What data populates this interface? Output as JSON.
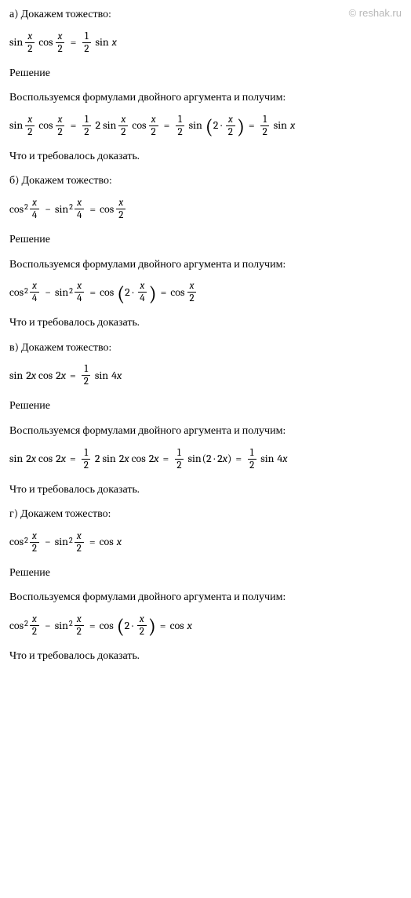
{
  "watermark": "© reshak.ru",
  "colors": {
    "text": "#000000",
    "bg": "#ffffff",
    "watermark": "#b8b8b8"
  },
  "typography": {
    "body_fontsize": 14,
    "math_fontsize": 14,
    "frac_fontsize": 13
  },
  "sections": {
    "a": {
      "title": "а) Докажем тожество:",
      "identity_lhs_fn1": "sin",
      "identity_lhs_fn2": "cos",
      "identity_rhs_fn": "sin",
      "var_x": "x",
      "num_1": "1",
      "num_2": "2",
      "solution_label": "Решение",
      "method": "Воспользуемся формулами двойного аргумента и получим:",
      "dot": "·",
      "qed": "Что и требовалось доказать."
    },
    "b": {
      "title": " б) Докажем тожество:",
      "fn_cos": "cos",
      "fn_sin": "sin",
      "sup2": "2",
      "var_x": "x",
      "num_4": "4",
      "num_2": "2",
      "dot": "·",
      "solution_label": "Решение",
      "method": "Воспользуемся формулами двойного аргумента и получим:",
      "qed": "Что и требовалось доказать."
    },
    "c": {
      "title": "в) Докажем тожество:",
      "fn_sin": "sin",
      "fn_cos": "cos",
      "num_2": "2",
      "num_1": "1",
      "num_4": "4",
      "var_x": "x",
      "dot": "·",
      "solution_label": "Решение",
      "method": "Воспользуемся формулами двойного аргумента и получим:",
      "qed": "Что и требовалось доказать."
    },
    "d": {
      "title": "г) Докажем тожество:",
      "fn_cos": "cos",
      "fn_sin": "sin",
      "sup2": "2",
      "var_x": "x",
      "num_2": "2",
      "dot": "·",
      "solution_label": "Решение",
      "method": "Воспользуемся формулами двойного аргумента и получим:",
      "qed": "Что и требовалось доказать."
    }
  }
}
